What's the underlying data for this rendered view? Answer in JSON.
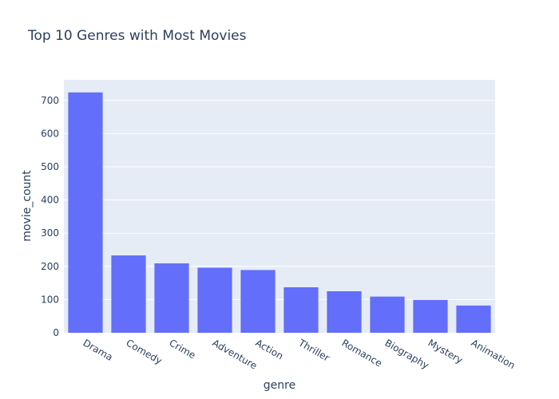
{
  "colors": {
    "plot_bg": "#e5ecf6",
    "bar": "#636efa",
    "grid": "#ffffff",
    "text": "#2a3f5f"
  },
  "chart_data": {
    "type": "bar",
    "title": "Top 10 Genres with Most Movies",
    "xlabel": "genre",
    "ylabel": "movie_count",
    "categories": [
      "Drama",
      "Comedy",
      "Crime",
      "Adventure",
      "Action",
      "Thriller",
      "Romance",
      "Biography",
      "Mystery",
      "Animation"
    ],
    "values": [
      724,
      233,
      209,
      196,
      189,
      137,
      125,
      109,
      99,
      82
    ],
    "ylim": [
      0,
      762
    ],
    "yticks": [
      0,
      100,
      200,
      300,
      400,
      500,
      600,
      700
    ],
    "grid": true,
    "legend": "none"
  }
}
